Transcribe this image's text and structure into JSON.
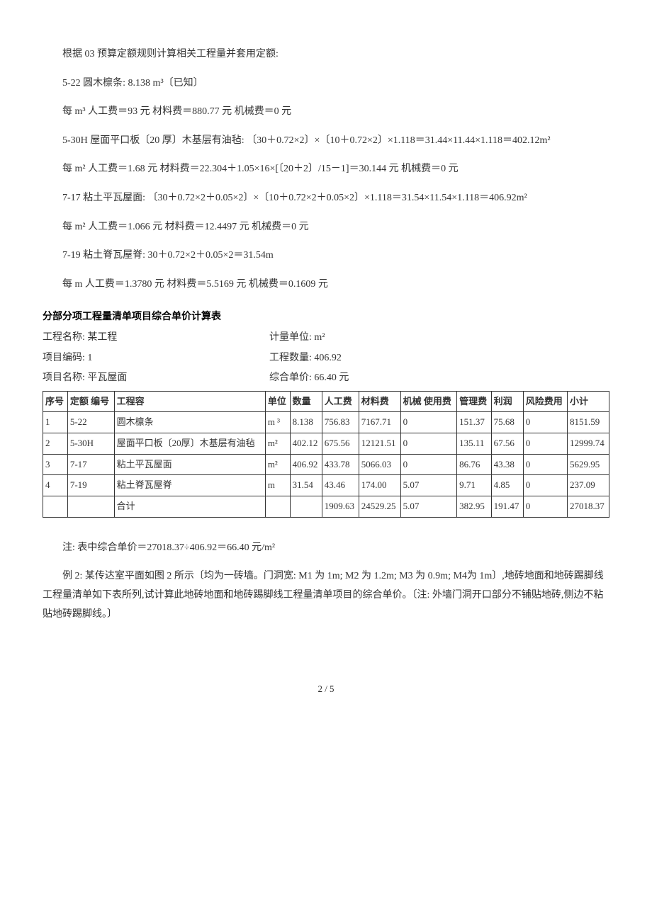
{
  "paragraphs": {
    "p1": "根据 03 预算定额规则计算相关工程量并套用定额:",
    "p2": "5-22  圆木檩条: 8.138 m³〔已知〕",
    "p3": "每 m³  人工费＝93 元  材料费＝880.77 元  机械费＝0 元",
    "p4": "5-30H         屋面平口板〔20 厚〕木基层有油毡:        〔30＋0.72×2〕×〔10＋0.72×2〕×1.118＝31.44×11.44×1.118＝402.12m²",
    "p5": "每 m²   人工费＝1.68 元   材料费＝22.304＋1.05×16×[〔20＋2〕/15－1]＝30.144 元  机械费＝0 元",
    "p6": "7-17         粘土平瓦屋面:         〔30＋0.72×2＋0.05×2〕×〔10＋0.72×2＋0.05×2〕×1.118＝31.54×11.54×1.118＝406.92m²",
    "p7": "每 m²  人工费＝1.066 元  材料费＝12.4497 元   机械费＝0 元",
    "p8": "7-19  粘土脊瓦屋脊:  30＋0.72×2＋0.05×2＝31.54m",
    "p9": "每 m  人工费＝1.3780 元  材料费＝5.5169 元   机械费＝0.1609 元"
  },
  "section_title": "分部分项工程量清单项目综合单价计算表",
  "header": {
    "row1_left": "工程名称: 某工程",
    "row1_right": "计量单位: m²",
    "row2_left": "项目编码: 1",
    "row2_right": "工程数量: 406.92",
    "row3_left": "项目名称: 平瓦屋面",
    "row3_right": "综合单价: 66.40 元"
  },
  "table": {
    "columns": [
      "序号",
      "定额 编号",
      "工程容",
      "单位",
      "数量",
      "人工费",
      "材料费",
      "机械 使用费",
      "管理费",
      "利润",
      "风险费用",
      "小计"
    ],
    "rows": [
      [
        "1",
        "5-22",
        "圆木檩条",
        "m ³",
        "8.138",
        "756.83",
        "7167.71",
        "0",
        "151.37",
        "75.68",
        "0",
        "8151.59"
      ],
      [
        "2",
        "5-30H",
        "屋面平口板〔20厚〕木基层有油毡",
        "m²",
        "402.12",
        "675.56",
        "12121.51",
        "0",
        "135.11",
        "67.56",
        "0",
        "12999.74"
      ],
      [
        "3",
        "7-17",
        "粘土平瓦屋面",
        "m²",
        "406.92",
        "433.78",
        "5066.03",
        "0",
        "86.76",
        "43.38",
        "0",
        "5629.95"
      ],
      [
        "4",
        "7-19",
        "粘土脊瓦屋脊",
        "m",
        "31.54",
        "43.46",
        "174.00",
        "5.07",
        "9.71",
        "4.85",
        "0",
        "237.09"
      ],
      [
        "",
        "",
        "合计",
        "",
        "",
        "1909.63",
        "24529.25",
        "5.07",
        "382.95",
        "191.47",
        "0",
        "27018.37"
      ]
    ]
  },
  "note1": "注: 表中综合单价＝27018.37÷406.92＝66.40 元/m²",
  "note2": "例 2: 某传达室平面如图 2 所示〔均为一砖墙。门洞宽: M1 为 1m; M2 为 1.2m; M3 为 0.9m; M4为 1m〕,地砖地面和地砖踢脚线工程量清单如下表所列,试计算此地砖地面和地砖踢脚线工程量清单项目的综合单价。〔注: 外墙门洞开口部分不铺贴地砖,侧边不粘贴地砖踢脚线。〕",
  "footer": "2 / 5"
}
